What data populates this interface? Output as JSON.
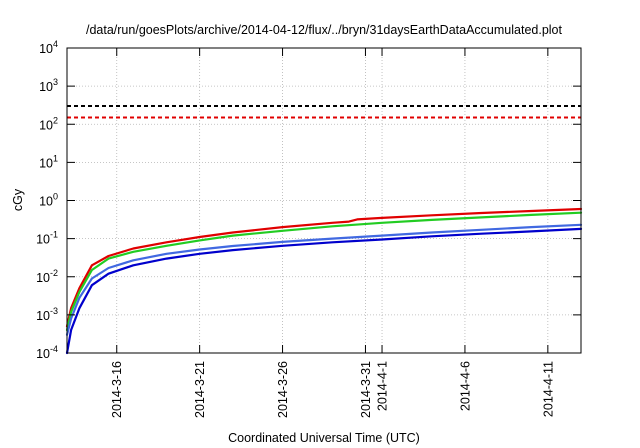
{
  "chart_data": {
    "type": "line",
    "title": "/data/run/goesPlots/archive/2014-04-12/flux/../bryn/31daysEarthDataAccumulated.plot",
    "xlabel": "Coordinated Universal Time (UTC)",
    "ylabel": "cGy",
    "yscale": "log",
    "ylim": [
      0.0001,
      10000
    ],
    "xlim": [
      "2014-03-13",
      "2014-04-13"
    ],
    "grid": true,
    "x_ticks": [
      {
        "date": "2014-03-16",
        "label": "2014-3-16"
      },
      {
        "date": "2014-03-21",
        "label": "2014-3-21"
      },
      {
        "date": "2014-03-26",
        "label": "2014-3-26"
      },
      {
        "date": "2014-03-31",
        "label": "2014-3-31"
      },
      {
        "date": "2014-04-01",
        "label": "2014-4-1"
      },
      {
        "date": "2014-04-06",
        "label": "2014-4-6"
      },
      {
        "date": "2014-04-11",
        "label": "2014-4-11"
      }
    ],
    "y_ticks": [
      {
        "value": 0.0001,
        "base": "10",
        "exp": "-4"
      },
      {
        "value": 0.001,
        "base": "10",
        "exp": "-3"
      },
      {
        "value": 0.01,
        "base": "10",
        "exp": "-2"
      },
      {
        "value": 0.1,
        "base": "10",
        "exp": "-1"
      },
      {
        "value": 1,
        "base": "10",
        "exp": "0"
      },
      {
        "value": 10,
        "base": "10",
        "exp": "1"
      },
      {
        "value": 100,
        "base": "10",
        "exp": "2"
      },
      {
        "value": 1000,
        "base": "10",
        "exp": "3"
      },
      {
        "value": 10000,
        "base": "10",
        "exp": "4"
      }
    ],
    "hlines": [
      {
        "y": 300,
        "color": "#000000",
        "style": "dashed"
      },
      {
        "y": 150,
        "color": "#e00000",
        "style": "dashed"
      }
    ],
    "series": [
      {
        "color": "#e00000",
        "x": [
          "2014-03-13 00:00",
          "2014-03-13 06:00",
          "2014-03-13 18:00",
          "2014-03-14 12:00",
          "2014-03-15 12:00",
          "2014-03-17 00:00",
          "2014-03-19 00:00",
          "2014-03-21 00:00",
          "2014-03-23 00:00",
          "2014-03-26 00:00",
          "2014-03-29 00:00",
          "2014-03-30 00:00",
          "2014-03-30 12:00",
          "2014-04-01 00:00",
          "2014-04-04 00:00",
          "2014-04-07 00:00",
          "2014-04-10 00:00",
          "2014-04-13 00:00"
        ],
        "y": [
          0.0005,
          0.0015,
          0.005,
          0.02,
          0.035,
          0.055,
          0.08,
          0.11,
          0.145,
          0.2,
          0.26,
          0.28,
          0.32,
          0.35,
          0.41,
          0.47,
          0.53,
          0.6
        ]
      },
      {
        "color": "#22cc22",
        "x": [
          "2014-03-13 00:00",
          "2014-03-13 06:00",
          "2014-03-13 18:00",
          "2014-03-14 12:00",
          "2014-03-15 12:00",
          "2014-03-17 00:00",
          "2014-03-19 00:00",
          "2014-03-21 00:00",
          "2014-03-23 00:00",
          "2014-03-26 00:00",
          "2014-03-29 00:00",
          "2014-04-01 00:00",
          "2014-04-04 00:00",
          "2014-04-07 00:00",
          "2014-04-10 00:00",
          "2014-04-13 00:00"
        ],
        "y": [
          0.0004,
          0.0012,
          0.004,
          0.015,
          0.03,
          0.045,
          0.065,
          0.09,
          0.12,
          0.16,
          0.21,
          0.26,
          0.31,
          0.36,
          0.42,
          0.48
        ]
      },
      {
        "color": "#4169e1",
        "x": [
          "2014-03-13 00:00",
          "2014-03-13 06:00",
          "2014-03-13 18:00",
          "2014-03-14 12:00",
          "2014-03-15 12:00",
          "2014-03-17 00:00",
          "2014-03-19 00:00",
          "2014-03-21 00:00",
          "2014-03-23 00:00",
          "2014-03-26 00:00",
          "2014-03-29 00:00",
          "2014-04-01 00:00",
          "2014-04-04 00:00",
          "2014-04-07 00:00",
          "2014-04-10 00:00",
          "2014-04-13 00:00"
        ],
        "y": [
          0.0003,
          0.0008,
          0.0028,
          0.009,
          0.017,
          0.027,
          0.04,
          0.052,
          0.064,
          0.082,
          0.1,
          0.12,
          0.145,
          0.17,
          0.2,
          0.23
        ]
      },
      {
        "color": "#0000cc",
        "x": [
          "2014-03-13 00:00",
          "2014-03-13 06:00",
          "2014-03-13 18:00",
          "2014-03-14 12:00",
          "2014-03-15 12:00",
          "2014-03-17 00:00",
          "2014-03-19 00:00",
          "2014-03-21 00:00",
          "2014-03-23 00:00",
          "2014-03-26 00:00",
          "2014-03-29 00:00",
          "2014-04-01 00:00",
          "2014-04-04 00:00",
          "2014-04-07 00:00",
          "2014-04-10 00:00",
          "2014-04-13 00:00"
        ],
        "y": [
          0.0001,
          0.0004,
          0.0015,
          0.006,
          0.012,
          0.02,
          0.03,
          0.04,
          0.05,
          0.065,
          0.08,
          0.095,
          0.115,
          0.135,
          0.155,
          0.18
        ]
      }
    ]
  }
}
